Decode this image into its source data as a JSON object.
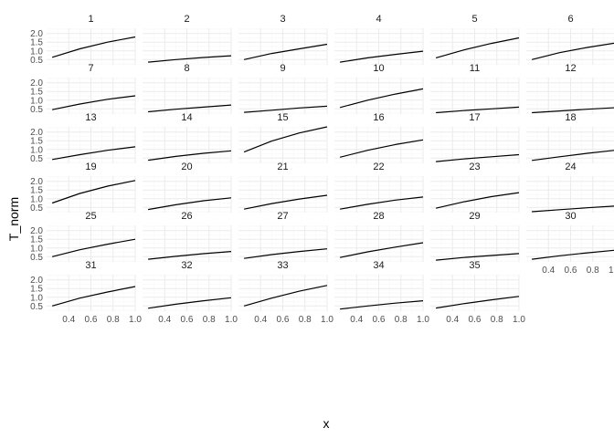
{
  "chart_data": {
    "type": "line",
    "xlabel": "x",
    "ylabel": "T_norm",
    "xlim": [
      0.2,
      1.0
    ],
    "ylim": [
      0.2,
      2.3
    ],
    "x_ticks": [
      "0.4",
      "0.6",
      "0.8",
      "1.0"
    ],
    "y_ticks": [
      "0.5",
      "1.0",
      "1.5",
      "2.0"
    ],
    "x_tick_values": [
      0.4,
      0.6,
      0.8,
      1.0
    ],
    "y_tick_values": [
      0.5,
      1.0,
      1.5,
      2.0
    ],
    "ncols": 6,
    "colors": {
      "line": "#000000",
      "panel": "#ffffff",
      "grid_major": "#ebebeb",
      "grid_minor": "#f5f5f5"
    },
    "x": [
      0.25,
      0.5,
      0.75,
      1.0
    ],
    "panels": [
      {
        "label": "1",
        "values": [
          0.63,
          1.12,
          1.5,
          1.8
        ]
      },
      {
        "label": "2",
        "values": [
          0.35,
          0.5,
          0.62,
          0.72
        ]
      },
      {
        "label": "3",
        "values": [
          0.5,
          0.85,
          1.12,
          1.38
        ]
      },
      {
        "label": "4",
        "values": [
          0.35,
          0.6,
          0.8,
          0.98
        ]
      },
      {
        "label": "5",
        "values": [
          0.6,
          1.05,
          1.43,
          1.75
        ]
      },
      {
        "label": "6",
        "values": [
          0.5,
          0.9,
          1.2,
          1.45
        ]
      },
      {
        "label": "7",
        "values": [
          0.45,
          0.78,
          1.05,
          1.25
        ]
      },
      {
        "label": "8",
        "values": [
          0.33,
          0.48,
          0.6,
          0.72
        ]
      },
      {
        "label": "9",
        "values": [
          0.3,
          0.42,
          0.55,
          0.65
        ]
      },
      {
        "label": "10",
        "values": [
          0.58,
          1.0,
          1.35,
          1.65
        ]
      },
      {
        "label": "11",
        "values": [
          0.28,
          0.4,
          0.5,
          0.6
        ]
      },
      {
        "label": "12",
        "values": [
          0.28,
          0.38,
          0.48,
          0.57
        ]
      },
      {
        "label": "13",
        "values": [
          0.42,
          0.7,
          0.95,
          1.15
        ]
      },
      {
        "label": "14",
        "values": [
          0.38,
          0.6,
          0.78,
          0.92
        ]
      },
      {
        "label": "15",
        "values": [
          0.85,
          1.48,
          1.95,
          2.3
        ]
      },
      {
        "label": "16",
        "values": [
          0.55,
          0.95,
          1.28,
          1.55
        ]
      },
      {
        "label": "17",
        "values": [
          0.3,
          0.45,
          0.58,
          0.7
        ]
      },
      {
        "label": "18",
        "values": [
          0.37,
          0.58,
          0.78,
          0.95
        ]
      },
      {
        "label": "19",
        "values": [
          0.75,
          1.3,
          1.72,
          2.05
        ]
      },
      {
        "label": "20",
        "values": [
          0.38,
          0.65,
          0.88,
          1.05
        ]
      },
      {
        "label": "21",
        "values": [
          0.4,
          0.72,
          0.98,
          1.2
        ]
      },
      {
        "label": "22",
        "values": [
          0.4,
          0.68,
          0.92,
          1.1
        ]
      },
      {
        "label": "23",
        "values": [
          0.45,
          0.82,
          1.12,
          1.35
        ]
      },
      {
        "label": "24",
        "values": [
          0.25,
          0.37,
          0.48,
          0.58
        ]
      },
      {
        "label": "25",
        "values": [
          0.5,
          0.9,
          1.22,
          1.5
        ]
      },
      {
        "label": "26",
        "values": [
          0.35,
          0.52,
          0.67,
          0.8
        ]
      },
      {
        "label": "27",
        "values": [
          0.4,
          0.62,
          0.8,
          0.95
        ]
      },
      {
        "label": "28",
        "values": [
          0.45,
          0.78,
          1.05,
          1.3
        ]
      },
      {
        "label": "29",
        "values": [
          0.3,
          0.45,
          0.57,
          0.68
        ]
      },
      {
        "label": "30",
        "values": [
          0.35,
          0.55,
          0.72,
          0.87
        ]
      },
      {
        "label": "31",
        "values": [
          0.5,
          0.95,
          1.3,
          1.62
        ]
      },
      {
        "label": "32",
        "values": [
          0.37,
          0.6,
          0.8,
          0.97
        ]
      },
      {
        "label": "33",
        "values": [
          0.5,
          0.95,
          1.35,
          1.68
        ]
      },
      {
        "label": "34",
        "values": [
          0.32,
          0.5,
          0.66,
          0.8
        ]
      },
      {
        "label": "35",
        "values": [
          0.38,
          0.63,
          0.85,
          1.05
        ]
      }
    ]
  }
}
